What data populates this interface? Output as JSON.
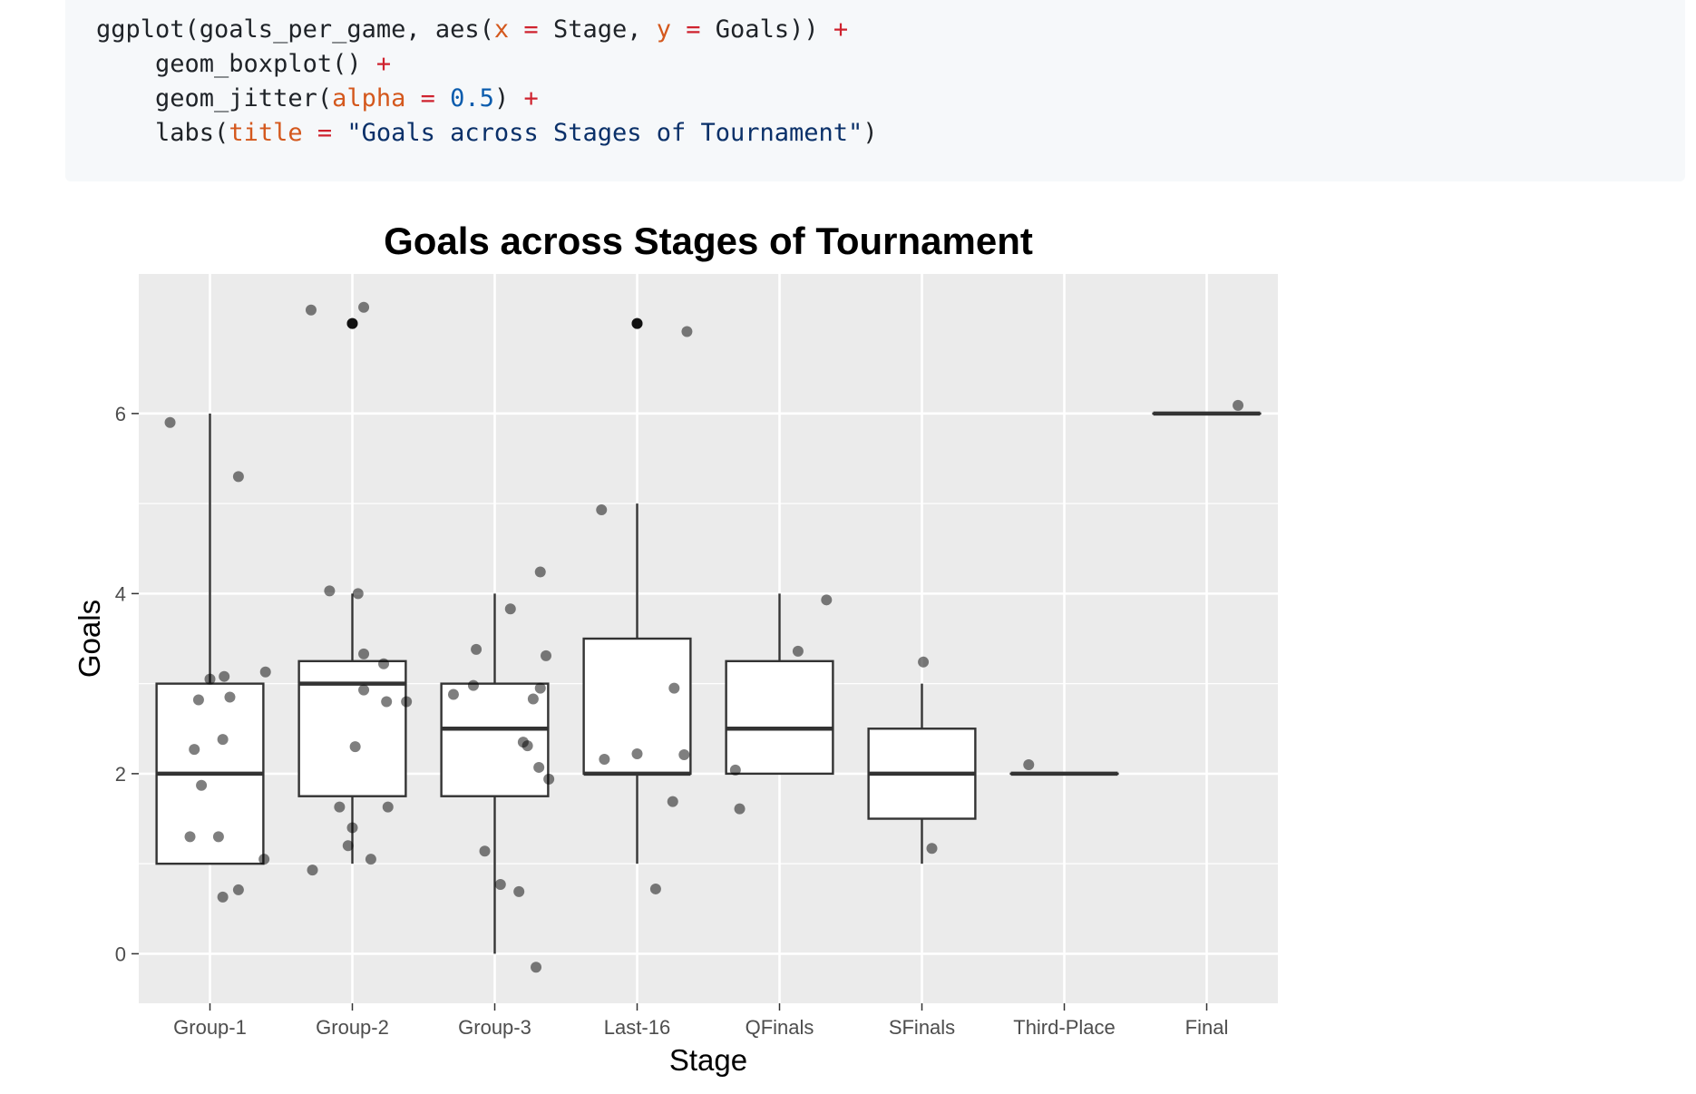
{
  "code": {
    "line1": {
      "p1": "ggplot(goals_per_game, aes(",
      "a1": "x",
      "e1": " = ",
      "p2": "Stage, ",
      "a2": "y",
      "e2": " = ",
      "p3": "Goals)) ",
      "plus": "+"
    },
    "line2": {
      "p1": "    geom_boxplot() ",
      "plus": "+"
    },
    "line3": {
      "p1": "    geom_jitter(",
      "a1": "alpha",
      "e1": " = ",
      "n1": "0.5",
      "p2": ") ",
      "plus": "+"
    },
    "line4": {
      "p1": "    labs(",
      "a1": "title",
      "e1": " = ",
      "s1": "\"Goals across Stages of Tournament\"",
      "p2": ")"
    }
  },
  "chart_data": {
    "type": "boxplot",
    "title": "Goals across Stages of Tournament",
    "xlabel": "Stage",
    "ylabel": "Goals",
    "ylim": [
      -0.55,
      7.55
    ],
    "yticks": [
      0,
      2,
      4,
      6
    ],
    "grid": true,
    "legend": "none",
    "colors": {
      "panel": "#ebebeb",
      "grid": "#ffffff",
      "box_fill": "#ffffff",
      "box_line": "#333333",
      "point": "#000000"
    },
    "categories": [
      "Group-1",
      "Group-2",
      "Group-3",
      "Last-16",
      "QFinals",
      "SFinals",
      "Third-Place",
      "Final"
    ],
    "boxes": [
      {
        "stage": "Group-1",
        "min": 1,
        "q1": 1,
        "median": 2,
        "q3": 3,
        "max": 6,
        "outliers": []
      },
      {
        "stage": "Group-2",
        "min": 1,
        "q1": 1.75,
        "median": 3,
        "q3": 3.25,
        "max": 4,
        "outliers": [
          7
        ]
      },
      {
        "stage": "Group-3",
        "min": 0,
        "q1": 1.75,
        "median": 2.5,
        "q3": 3,
        "max": 4,
        "outliers": []
      },
      {
        "stage": "Last-16",
        "min": 1,
        "q1": 2,
        "median": 2,
        "q3": 3.5,
        "max": 5,
        "outliers": [
          7
        ]
      },
      {
        "stage": "QFinals",
        "min": 2,
        "q1": 2,
        "median": 2.5,
        "q3": 3.25,
        "max": 4,
        "outliers": []
      },
      {
        "stage": "SFinals",
        "min": 1,
        "q1": 1.5,
        "median": 2,
        "q3": 2.5,
        "max": 3,
        "outliers": []
      },
      {
        "stage": "Third-Place",
        "min": 2,
        "q1": 2,
        "median": 2,
        "q3": 2,
        "max": 2,
        "outliers": []
      },
      {
        "stage": "Final",
        "min": 6,
        "q1": 6,
        "median": 6,
        "q3": 6,
        "max": 6,
        "outliers": []
      }
    ],
    "jitter_points": [
      {
        "stage": "Group-1",
        "x_offset": -0.28,
        "y": 5.9
      },
      {
        "stage": "Group-1",
        "x_offset": 0.2,
        "y": 5.3
      },
      {
        "stage": "Group-1",
        "x_offset": 0.39,
        "y": 3.13
      },
      {
        "stage": "Group-1",
        "x_offset": 0.1,
        "y": 3.08
      },
      {
        "stage": "Group-1",
        "x_offset": 0.0,
        "y": 3.05
      },
      {
        "stage": "Group-1",
        "x_offset": -0.08,
        "y": 2.82
      },
      {
        "stage": "Group-1",
        "x_offset": 0.14,
        "y": 2.85
      },
      {
        "stage": "Group-1",
        "x_offset": 0.09,
        "y": 2.38
      },
      {
        "stage": "Group-1",
        "x_offset": -0.11,
        "y": 2.27
      },
      {
        "stage": "Group-1",
        "x_offset": -0.06,
        "y": 1.87
      },
      {
        "stage": "Group-1",
        "x_offset": -0.14,
        "y": 1.3
      },
      {
        "stage": "Group-1",
        "x_offset": 0.06,
        "y": 1.3
      },
      {
        "stage": "Group-1",
        "x_offset": 0.38,
        "y": 1.05
      },
      {
        "stage": "Group-1",
        "x_offset": 0.2,
        "y": 0.71
      },
      {
        "stage": "Group-1",
        "x_offset": 0.09,
        "y": 0.63
      },
      {
        "stage": "Group-2",
        "x_offset": -0.29,
        "y": 7.15
      },
      {
        "stage": "Group-2",
        "x_offset": 0.08,
        "y": 7.18
      },
      {
        "stage": "Group-2",
        "x_offset": 0.0,
        "y": 7.0
      },
      {
        "stage": "Group-2",
        "x_offset": -0.16,
        "y": 4.03
      },
      {
        "stage": "Group-2",
        "x_offset": 0.04,
        "y": 4.0
      },
      {
        "stage": "Group-2",
        "x_offset": 0.08,
        "y": 3.33
      },
      {
        "stage": "Group-2",
        "x_offset": 0.22,
        "y": 3.22
      },
      {
        "stage": "Group-2",
        "x_offset": 0.08,
        "y": 2.93
      },
      {
        "stage": "Group-2",
        "x_offset": 0.24,
        "y": 2.8
      },
      {
        "stage": "Group-2",
        "x_offset": 0.38,
        "y": 2.8
      },
      {
        "stage": "Group-2",
        "x_offset": 0.02,
        "y": 2.3
      },
      {
        "stage": "Group-2",
        "x_offset": -0.09,
        "y": 1.63
      },
      {
        "stage": "Group-2",
        "x_offset": 0.25,
        "y": 1.63
      },
      {
        "stage": "Group-2",
        "x_offset": 0.0,
        "y": 1.4
      },
      {
        "stage": "Group-2",
        "x_offset": -0.03,
        "y": 1.2
      },
      {
        "stage": "Group-2",
        "x_offset": 0.13,
        "y": 1.05
      },
      {
        "stage": "Group-2",
        "x_offset": -0.28,
        "y": 0.93
      },
      {
        "stage": "Group-3",
        "x_offset": 0.32,
        "y": 4.24
      },
      {
        "stage": "Group-3",
        "x_offset": 0.11,
        "y": 3.83
      },
      {
        "stage": "Group-3",
        "x_offset": -0.13,
        "y": 3.38
      },
      {
        "stage": "Group-3",
        "x_offset": 0.36,
        "y": 3.31
      },
      {
        "stage": "Group-3",
        "x_offset": -0.15,
        "y": 2.98
      },
      {
        "stage": "Group-3",
        "x_offset": 0.32,
        "y": 2.95
      },
      {
        "stage": "Group-3",
        "x_offset": -0.29,
        "y": 2.88
      },
      {
        "stage": "Group-3",
        "x_offset": 0.27,
        "y": 2.83
      },
      {
        "stage": "Group-3",
        "x_offset": 0.2,
        "y": 2.35
      },
      {
        "stage": "Group-3",
        "x_offset": 0.23,
        "y": 2.31
      },
      {
        "stage": "Group-3",
        "x_offset": 0.31,
        "y": 2.07
      },
      {
        "stage": "Group-3",
        "x_offset": 0.38,
        "y": 1.94
      },
      {
        "stage": "Group-3",
        "x_offset": -0.07,
        "y": 1.14
      },
      {
        "stage": "Group-3",
        "x_offset": 0.04,
        "y": 0.77
      },
      {
        "stage": "Group-3",
        "x_offset": 0.17,
        "y": 0.69
      },
      {
        "stage": "Group-3",
        "x_offset": 0.29,
        "y": -0.15
      },
      {
        "stage": "Last-16",
        "x_offset": 0.0,
        "y": 7.0
      },
      {
        "stage": "Last-16",
        "x_offset": 0.35,
        "y": 6.91
      },
      {
        "stage": "Last-16",
        "x_offset": -0.25,
        "y": 4.93
      },
      {
        "stage": "Last-16",
        "x_offset": 0.26,
        "y": 2.95
      },
      {
        "stage": "Last-16",
        "x_offset": -0.23,
        "y": 2.16
      },
      {
        "stage": "Last-16",
        "x_offset": 0.0,
        "y": 2.22
      },
      {
        "stage": "Last-16",
        "x_offset": 0.33,
        "y": 2.21
      },
      {
        "stage": "Last-16",
        "x_offset": 0.25,
        "y": 1.69
      },
      {
        "stage": "Last-16",
        "x_offset": 0.13,
        "y": 0.72
      },
      {
        "stage": "QFinals",
        "x_offset": 0.33,
        "y": 3.93
      },
      {
        "stage": "QFinals",
        "x_offset": 0.13,
        "y": 3.36
      },
      {
        "stage": "QFinals",
        "x_offset": -0.31,
        "y": 2.04
      },
      {
        "stage": "QFinals",
        "x_offset": -0.28,
        "y": 1.61
      },
      {
        "stage": "SFinals",
        "x_offset": 0.01,
        "y": 3.24
      },
      {
        "stage": "SFinals",
        "x_offset": 0.07,
        "y": 1.17
      },
      {
        "stage": "Third-Place",
        "x_offset": -0.25,
        "y": 2.1
      },
      {
        "stage": "Final",
        "x_offset": 0.22,
        "y": 6.09
      }
    ]
  }
}
